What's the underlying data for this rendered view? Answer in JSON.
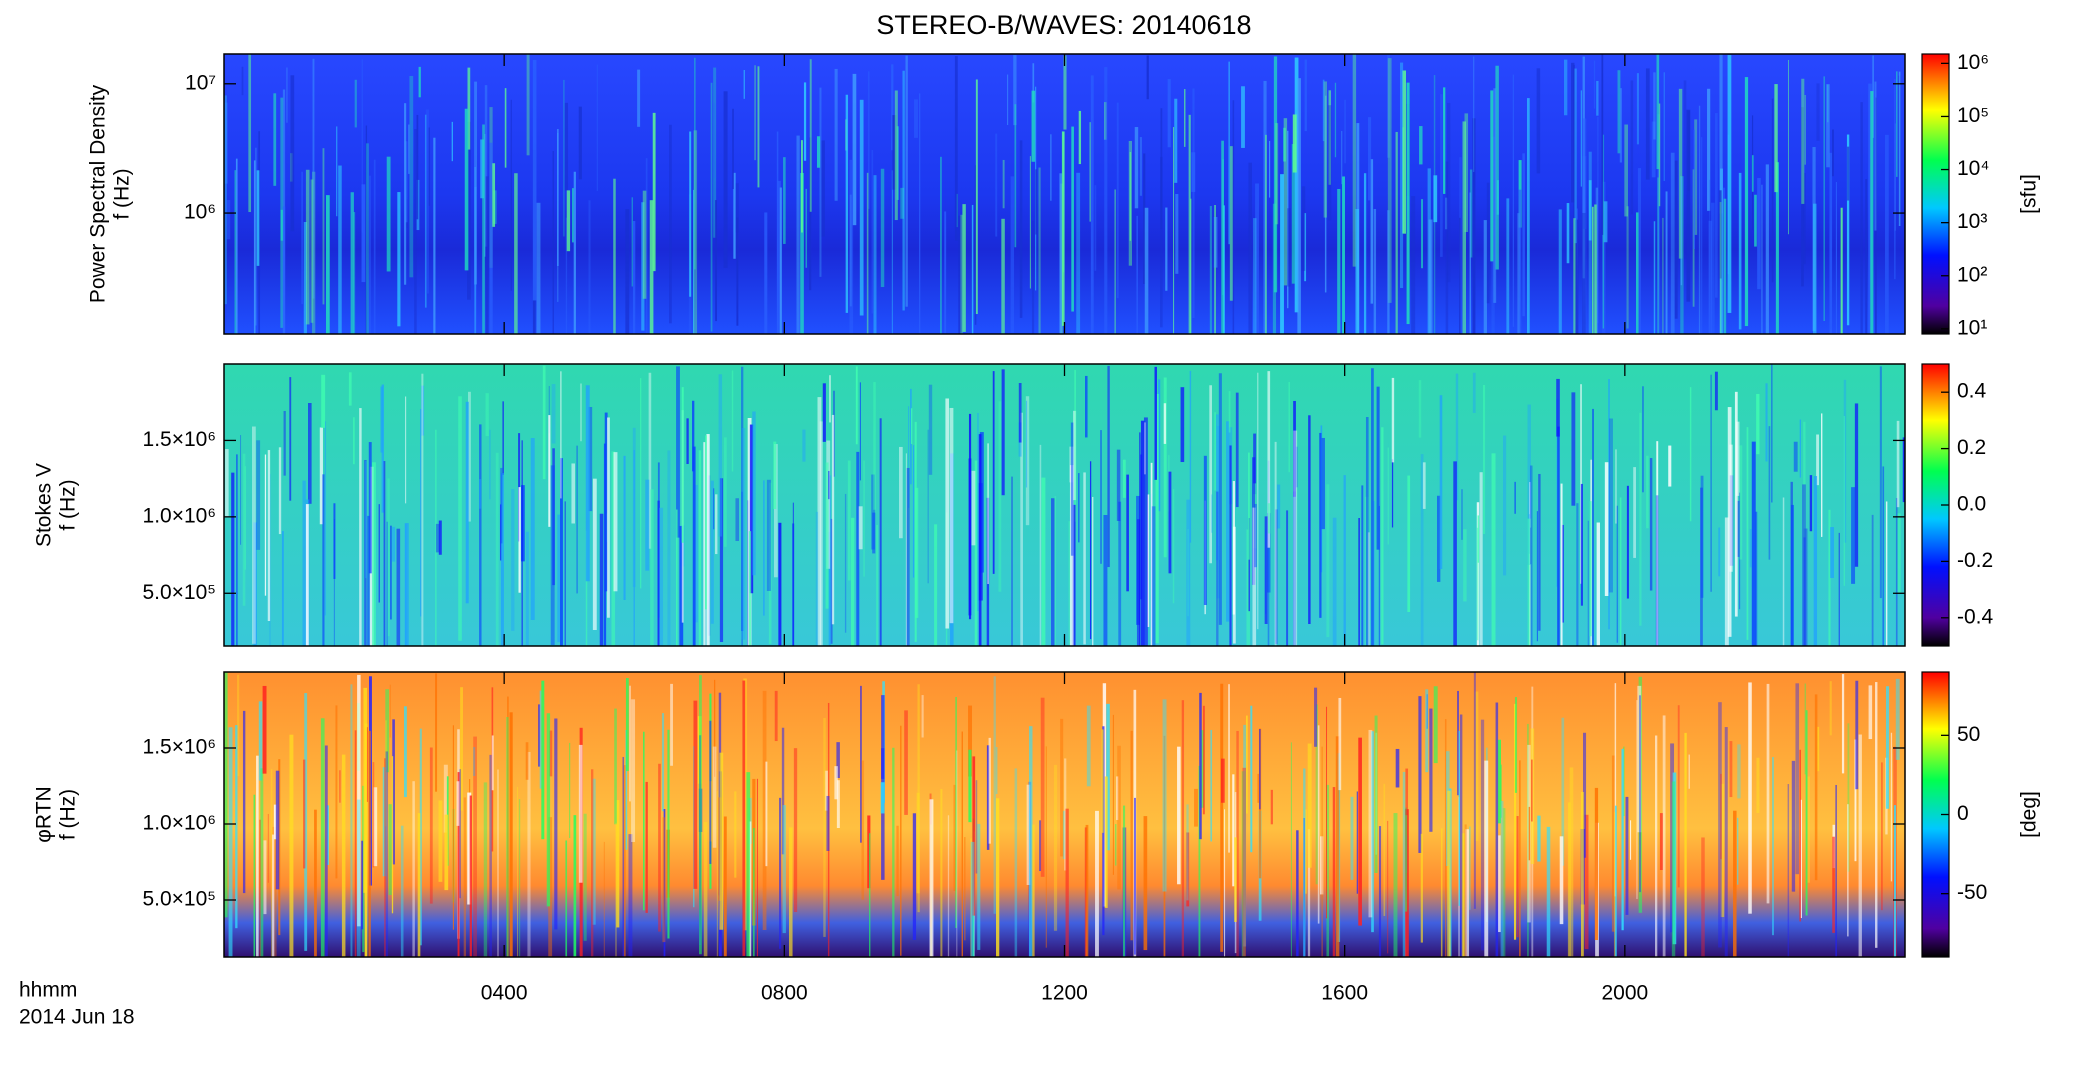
{
  "chart_data": [
    {
      "type": "heatmap",
      "title": "STEREO-B/WAVES: 20140618",
      "ylabel": [
        "Power Spectral Density",
        "f (Hz)"
      ],
      "xlim": [
        0,
        24
      ],
      "ylim": [
        116000,
        17000000
      ],
      "log": true,
      "yticks": [
        {
          "value": 1000000,
          "label": "10⁶"
        },
        {
          "value": 10000000,
          "label": "10⁷"
        }
      ],
      "colorbar": {
        "lim": [
          8,
          1500000
        ],
        "log": true,
        "label": "[sfu]",
        "ticks": [
          {
            "value": 10,
            "label": "10¹"
          },
          {
            "value": 100,
            "label": "10²"
          },
          {
            "value": 1000,
            "label": "10³"
          },
          {
            "value": 10000,
            "label": "10⁴"
          },
          {
            "value": 100000,
            "label": "10⁵"
          },
          {
            "value": 1000000,
            "label": "10⁶"
          }
        ]
      }
    },
    {
      "type": "heatmap",
      "ylabel": [
        "Stokes V",
        "f (Hz)"
      ],
      "xlim": [
        0,
        24
      ],
      "ylim": [
        155000,
        2000000
      ],
      "log": false,
      "yticks": [
        {
          "value": 500000,
          "label": "5.0×10⁵"
        },
        {
          "value": 1000000,
          "label": "1.0×10⁶"
        },
        {
          "value": 1500000,
          "label": "1.5×10⁶"
        }
      ],
      "colorbar": {
        "lim": [
          -0.5,
          0.5
        ],
        "log": false,
        "ticks": [
          -0.4,
          -0.2,
          {
            "value": 0,
            "label": "0.0"
          },
          0.2,
          0.4
        ]
      }
    },
    {
      "type": "heatmap",
      "ylabel": [
        "φRTN",
        "f (Hz)"
      ],
      "xlim": [
        0,
        24
      ],
      "ylim": [
        125000,
        2000000
      ],
      "log": false,
      "yticks": [
        {
          "value": 500000,
          "label": "5.0×10⁵"
        },
        {
          "value": 1000000,
          "label": "1.0×10⁶"
        },
        {
          "value": 1500000,
          "label": "1.5×10⁶"
        }
      ],
      "xticks": [
        {
          "value": 4,
          "label": "0400"
        },
        {
          "value": 8,
          "label": "0800"
        },
        {
          "value": 12,
          "label": "1200"
        },
        {
          "value": 16,
          "label": "1600"
        },
        {
          "value": 20,
          "label": "2000"
        }
      ],
      "xlabel": "hhmm",
      "date": "2014 Jun 18",
      "colorbar": {
        "lim": [
          -90,
          90
        ],
        "log": false,
        "label": "[deg]",
        "ticks": [
          -50,
          0,
          50
        ]
      }
    }
  ]
}
